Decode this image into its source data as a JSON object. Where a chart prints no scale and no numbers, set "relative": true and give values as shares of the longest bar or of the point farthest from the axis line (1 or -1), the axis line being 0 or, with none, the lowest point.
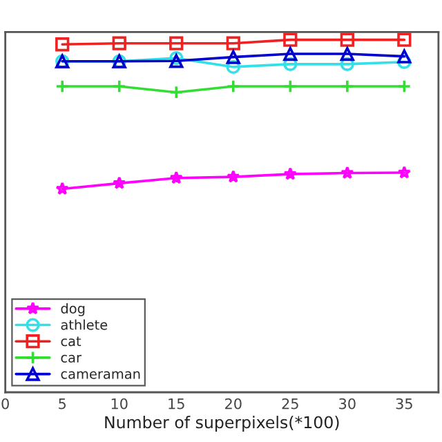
{
  "chart_data": {
    "type": "line",
    "xlabel": "Number of superpixels(*100)",
    "relative": true,
    "x": [
      5,
      10,
      15,
      20,
      25,
      30,
      35
    ],
    "xlim": [
      0,
      38
    ],
    "xticks": [
      0,
      5,
      10,
      15,
      20,
      25,
      30,
      35
    ],
    "grid": false,
    "legend": "bottom left",
    "line_style": "solid",
    "series": [
      {
        "name": "dog",
        "color": "#ff00ff",
        "marker": "star",
        "values": [
          0.577,
          0.593,
          0.608,
          0.611,
          0.619,
          0.622,
          0.623
        ]
      },
      {
        "name": "athlete",
        "color": "#33e0e8",
        "marker": "circle",
        "values": [
          0.939,
          0.939,
          0.948,
          0.923,
          0.931,
          0.931,
          0.937
        ]
      },
      {
        "name": "cat",
        "color": "#ee2222",
        "marker": "square",
        "values": [
          0.987,
          0.99,
          0.99,
          0.99,
          1,
          1,
          1
        ]
      },
      {
        "name": "car",
        "color": "#33dd33",
        "marker": "cross",
        "values": [
          0.868,
          0.868,
          0.851,
          0.868,
          0.868,
          0.868,
          0.868
        ]
      },
      {
        "name": "cameraman",
        "color": "#0000cc",
        "marker": "triangle",
        "values": [
          0.939,
          0.939,
          0.94,
          0.951,
          0.96,
          0.96,
          0.953
        ]
      }
    ]
  }
}
